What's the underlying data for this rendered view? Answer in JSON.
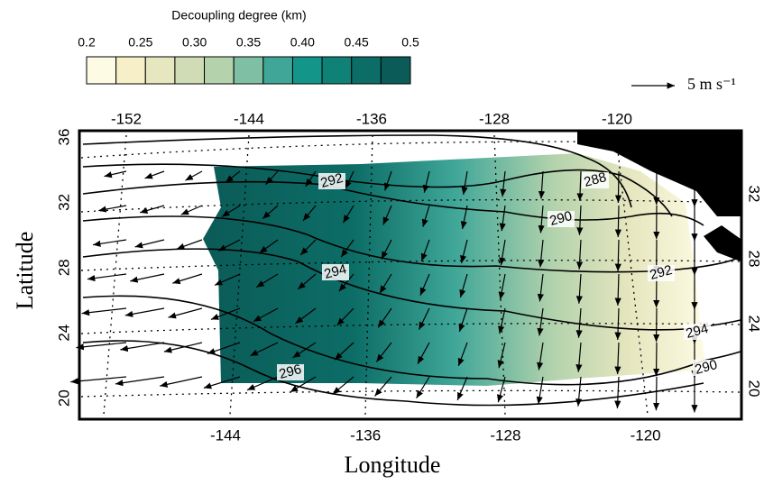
{
  "colorbar": {
    "title": "Decoupling degree (km)",
    "ticks": [
      0.2,
      0.25,
      {
        "value": 0.3,
        "label": "0.30"
      },
      0.35,
      {
        "value": 0.4,
        "label": "0.40"
      },
      0.45,
      0.5
    ],
    "colors": [
      "#fdfbe3",
      "#f6efc8",
      "#e6e6bf",
      "#cfdcb5",
      "#b4d3ad",
      "#7fbfa4",
      "#3fa698",
      "#13958a",
      "#0f8177",
      "#0c6d66",
      "#0b5b58"
    ]
  },
  "reference_vector": {
    "label": "5 m s⁻¹"
  },
  "map": {
    "x_label": "Longitude",
    "y_label": "Latitude",
    "top_ticks": [
      -152,
      -144,
      -136,
      -128,
      -120
    ],
    "bottom_ticks": [
      -144,
      -136,
      -128,
      -120
    ],
    "left_ticks": [
      36,
      32,
      28,
      24,
      20
    ],
    "right_ticks": [
      32,
      28,
      24,
      20
    ],
    "contour_labels": [
      288,
      290,
      292,
      292,
      294,
      294,
      296,
      290
    ]
  }
}
